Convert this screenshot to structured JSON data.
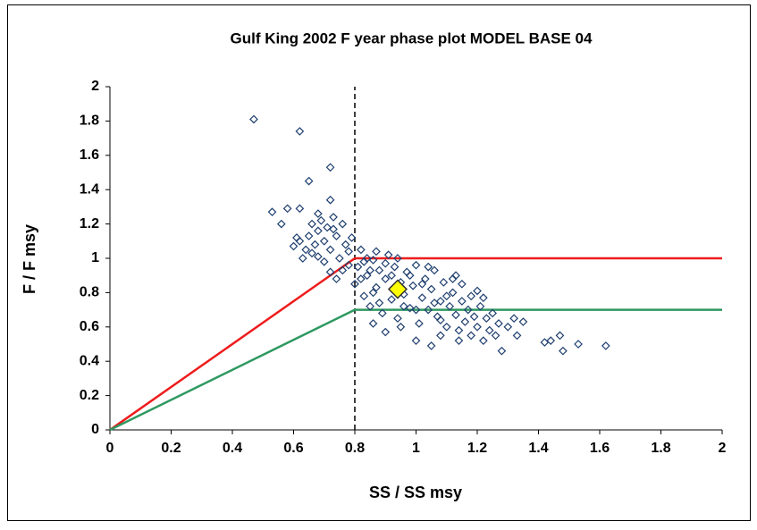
{
  "chart_data": {
    "type": "scatter",
    "title": "Gulf King 2002 F year phase plot MODEL BASE 04",
    "xlabel": "SS /  SS msy",
    "ylabel": "F / F msy",
    "xlim": [
      0,
      2
    ],
    "ylim": [
      0,
      2
    ],
    "xticks": [
      0,
      0.2,
      0.4,
      0.6,
      0.8,
      1,
      1.2,
      1.4,
      1.6,
      1.8,
      2
    ],
    "yticks": [
      0,
      0.2,
      0.4,
      0.6,
      0.8,
      1,
      1.2,
      1.4,
      1.6,
      1.8,
      2
    ],
    "vline": {
      "x": 0.8,
      "color": "#000000",
      "style": "dashed"
    },
    "series": [
      {
        "kind": "line",
        "color": "#ee1c1c",
        "x": [
          0,
          0.8,
          2
        ],
        "values": [
          0,
          1,
          1
        ]
      },
      {
        "kind": "line",
        "color": "#2e9960",
        "x": [
          0,
          0.8,
          2
        ],
        "values": [
          0,
          0.7,
          0.7
        ]
      },
      {
        "kind": "points",
        "marker": "diamond-open",
        "color": "#1f3f6f",
        "x": [
          0.47,
          0.62,
          0.72,
          0.65,
          0.53,
          0.58,
          0.62,
          0.72,
          1.62,
          1.53,
          1.48,
          1.47,
          1.42,
          1.44,
          1.35,
          1.28,
          1.2,
          1.22,
          1.05,
          0.6,
          0.62,
          0.64,
          0.65,
          0.66,
          0.67,
          0.68,
          0.69,
          0.7,
          0.71,
          0.72,
          0.73,
          0.74,
          0.75,
          0.76,
          0.77,
          0.78,
          0.79,
          0.63,
          0.66,
          0.7,
          0.72,
          0.74,
          0.76,
          0.78,
          0.61,
          0.68,
          0.73,
          0.56,
          0.68,
          0.8,
          0.81,
          0.82,
          0.83,
          0.84,
          0.85,
          0.86,
          0.87,
          0.88,
          0.89,
          0.9,
          0.91,
          0.92,
          0.93,
          0.94,
          0.95,
          0.96,
          0.97,
          0.98,
          0.99,
          1.0,
          1.01,
          1.02,
          1.03,
          1.04,
          1.05,
          1.06,
          1.07,
          1.08,
          1.09,
          1.1,
          0.82,
          0.84,
          0.86,
          0.88,
          0.9,
          0.92,
          0.94,
          0.96,
          0.98,
          1.0,
          1.02,
          1.04,
          1.06,
          1.08,
          0.86,
          0.9,
          0.95,
          1.0,
          0.83,
          0.87,
          0.85,
          1.11,
          1.12,
          1.13,
          1.14,
          1.15,
          1.16,
          1.17,
          1.18,
          1.19,
          1.2,
          1.21,
          1.22,
          1.23,
          1.24,
          1.25,
          1.26,
          1.27,
          1.3,
          1.32,
          1.33,
          1.12,
          1.15,
          1.1,
          1.13,
          1.18,
          1.08,
          1.14
        ],
        "values": [
          1.81,
          1.74,
          1.53,
          1.45,
          1.27,
          1.29,
          1.29,
          1.34,
          0.49,
          0.5,
          0.46,
          0.55,
          0.51,
          0.52,
          0.63,
          0.46,
          0.81,
          0.77,
          0.49,
          1.07,
          1.1,
          1.05,
          1.13,
          1.2,
          1.08,
          1.16,
          1.22,
          1.1,
          1.18,
          1.05,
          1.24,
          1.13,
          1.0,
          1.2,
          1.08,
          0.96,
          1.12,
          1.0,
          1.03,
          0.98,
          0.92,
          0.88,
          0.93,
          1.04,
          1.12,
          1.01,
          1.17,
          1.2,
          1.26,
          0.85,
          0.95,
          1.05,
          0.78,
          0.9,
          0.72,
          0.99,
          0.83,
          0.93,
          0.68,
          0.88,
          1.02,
          0.76,
          0.95,
          0.65,
          0.86,
          0.79,
          0.92,
          0.71,
          0.84,
          0.96,
          0.62,
          0.77,
          0.88,
          0.7,
          0.82,
          0.93,
          0.66,
          0.75,
          0.86,
          0.6,
          0.88,
          1.0,
          0.8,
          0.74,
          0.97,
          0.9,
          1.0,
          0.72,
          0.9,
          0.7,
          0.85,
          0.95,
          0.74,
          0.64,
          0.62,
          0.57,
          0.6,
          0.52,
          0.98,
          1.04,
          0.93,
          0.72,
          0.8,
          0.67,
          0.58,
          0.75,
          0.63,
          0.7,
          0.55,
          0.66,
          0.6,
          0.72,
          0.52,
          0.65,
          0.58,
          0.68,
          0.55,
          0.62,
          0.6,
          0.65,
          0.55,
          0.88,
          0.85,
          0.78,
          0.9,
          0.78,
          0.55,
          0.52
        ]
      },
      {
        "kind": "points",
        "marker": "diamond",
        "color": "#ffff00",
        "x": [
          0.94
        ],
        "values": [
          0.82
        ]
      }
    ]
  }
}
